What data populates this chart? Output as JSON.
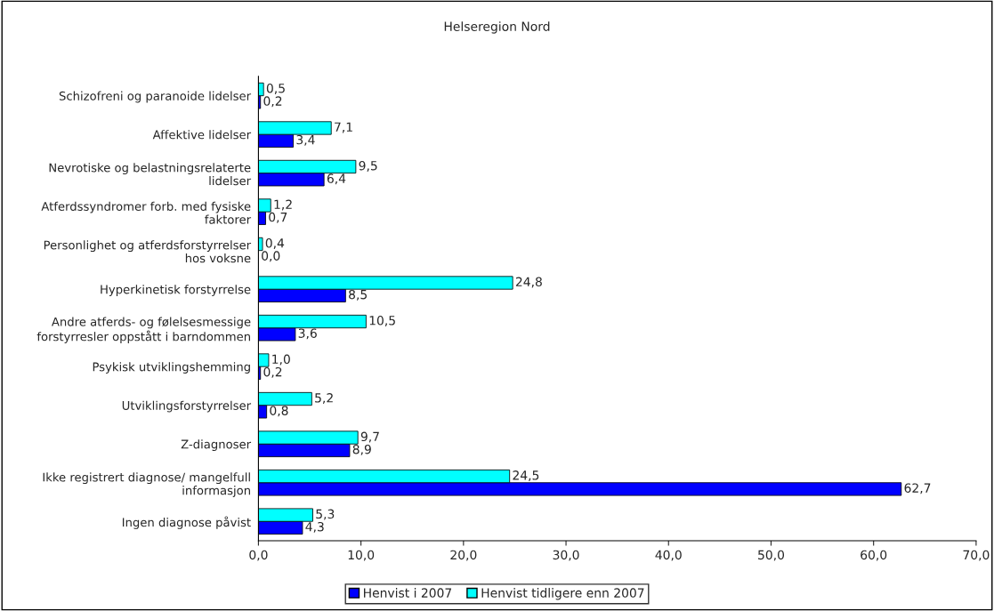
{
  "chart_data": {
    "type": "bar",
    "orientation": "horizontal",
    "title": "Helseregion Nord",
    "categories": [
      "Schizofreni og paranoide lidelser",
      "Affektive lidelser",
      "Nevrotiske og belastningsrelaterte lidelser",
      "Atferdssyndromer forb. med fysiske faktorer",
      "Personlighet og atferdsforstyrrelser hos voksne",
      "Hyperkinetisk forstyrrelse",
      "Andre atferds- og følelsesmessige forstyrresler oppstått i barndommen",
      "Psykisk utviklingshemming",
      "Utviklingsforstyrrelser",
      "Z-diagnoser",
      "Ikke registrert diagnose/ mangelfull informasjon",
      "Ingen diagnose påvist"
    ],
    "series": [
      {
        "name": "Henvist i 2007",
        "color": "#0000ff",
        "values": [
          0.2,
          3.4,
          6.4,
          0.7,
          0.0,
          8.5,
          3.6,
          0.2,
          0.8,
          8.9,
          62.7,
          4.3
        ],
        "value_labels": [
          "0,2",
          "3,4",
          "6,4",
          "0,7",
          "0,0",
          "8,5",
          "3,6",
          "0,2",
          "0,8",
          "8,9",
          "62,7",
          "4,3"
        ]
      },
      {
        "name": "Henvist tidligere enn 2007",
        "color": "#00ffff",
        "values": [
          0.5,
          7.1,
          9.5,
          1.2,
          0.4,
          24.8,
          10.5,
          1.0,
          5.2,
          9.7,
          24.5,
          5.3
        ],
        "value_labels": [
          "0,5",
          "7,1",
          "9,5",
          "1,2",
          "0,4",
          "24,8",
          "10,5",
          "1,0",
          "5,2",
          "9,7",
          "24,5",
          "5,3"
        ]
      }
    ],
    "xlim": [
      0,
      70
    ],
    "xticks": [
      {
        "value": 0,
        "label": "0,0"
      },
      {
        "value": 10,
        "label": "10,0"
      },
      {
        "value": 20,
        "label": "20,0"
      },
      {
        "value": 30,
        "label": "30,0"
      },
      {
        "value": 40,
        "label": "40,0"
      },
      {
        "value": 50,
        "label": "50,0"
      },
      {
        "value": 60,
        "label": "60,0"
      },
      {
        "value": 70,
        "label": "70,0"
      }
    ],
    "grid": false,
    "legend": "bottom"
  }
}
